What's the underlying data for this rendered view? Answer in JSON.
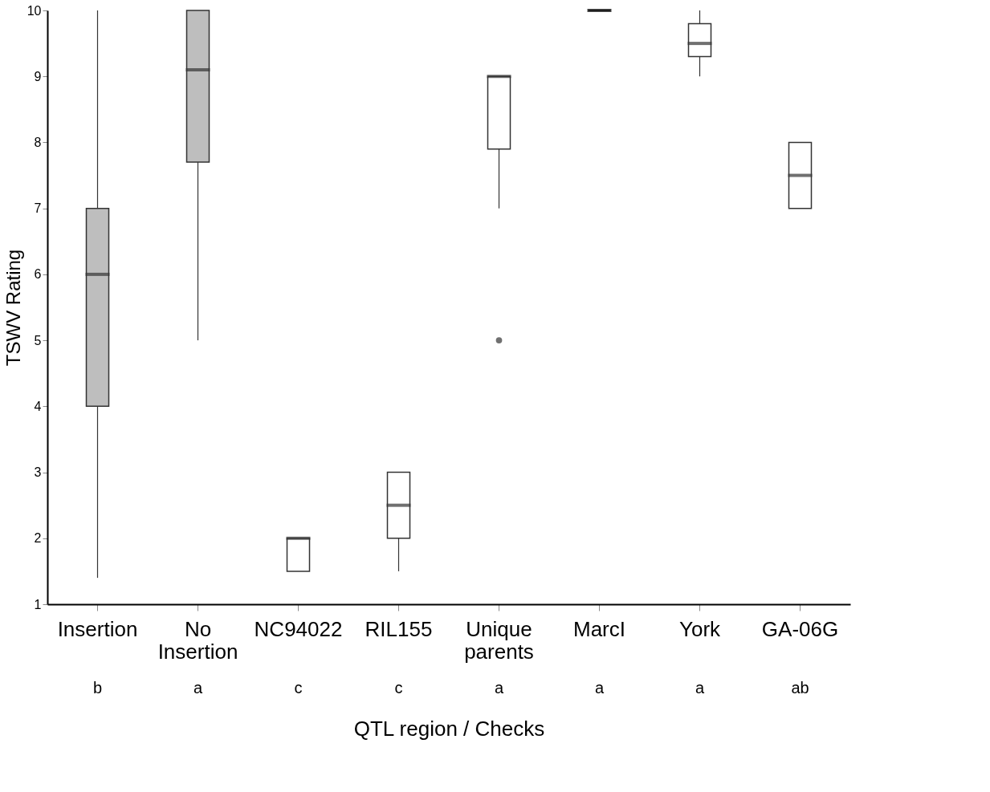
{
  "chart_data": {
    "type": "box",
    "xlabel": "QTL region / Checks",
    "ylabel": "TSWV Rating",
    "categories": [
      "Insertion",
      "No Insertion",
      "NC94022",
      "RIL155",
      "Unique parents",
      "MarcI",
      "York",
      "GA-06G"
    ],
    "boxes": [
      {
        "low": 1.4,
        "q1": 4,
        "median": 6,
        "q3": 7,
        "high": 10
      },
      {
        "low": 5,
        "q1": 7.7,
        "median": 9.1,
        "q3": 10,
        "high": 10
      },
      {
        "low": 1.5,
        "q1": 1.5,
        "median": 2,
        "q3": 2,
        "high": 2
      },
      {
        "low": 1.5,
        "q1": 2,
        "median": 2.5,
        "q3": 3,
        "high": 3
      },
      {
        "low": 7,
        "q1": 7.9,
        "median": 9,
        "q3": 9,
        "high": 9,
        "outliers": [
          5
        ]
      },
      {
        "low": 10,
        "q1": 10,
        "median": 10,
        "q3": 10,
        "high": 10
      },
      {
        "low": 9,
        "q1": 9.3,
        "median": 9.5,
        "q3": 9.8,
        "high": 10
      },
      {
        "low": 7,
        "q1": 7,
        "median": 7.5,
        "q3": 8,
        "high": 8
      }
    ],
    "colors": [
      "#bebebe",
      "#bebebe",
      "#ffffff",
      "#ffffff",
      "#ffffff",
      "#000000",
      "#ffffff",
      "#ffffff"
    ],
    "ylim": [
      1,
      10
    ],
    "yticks": [
      1,
      2,
      3,
      4,
      5,
      6,
      7,
      8,
      9,
      10
    ],
    "annotations": [
      "b",
      "a",
      "c",
      "c",
      "a",
      "a",
      "a",
      "ab"
    ]
  }
}
